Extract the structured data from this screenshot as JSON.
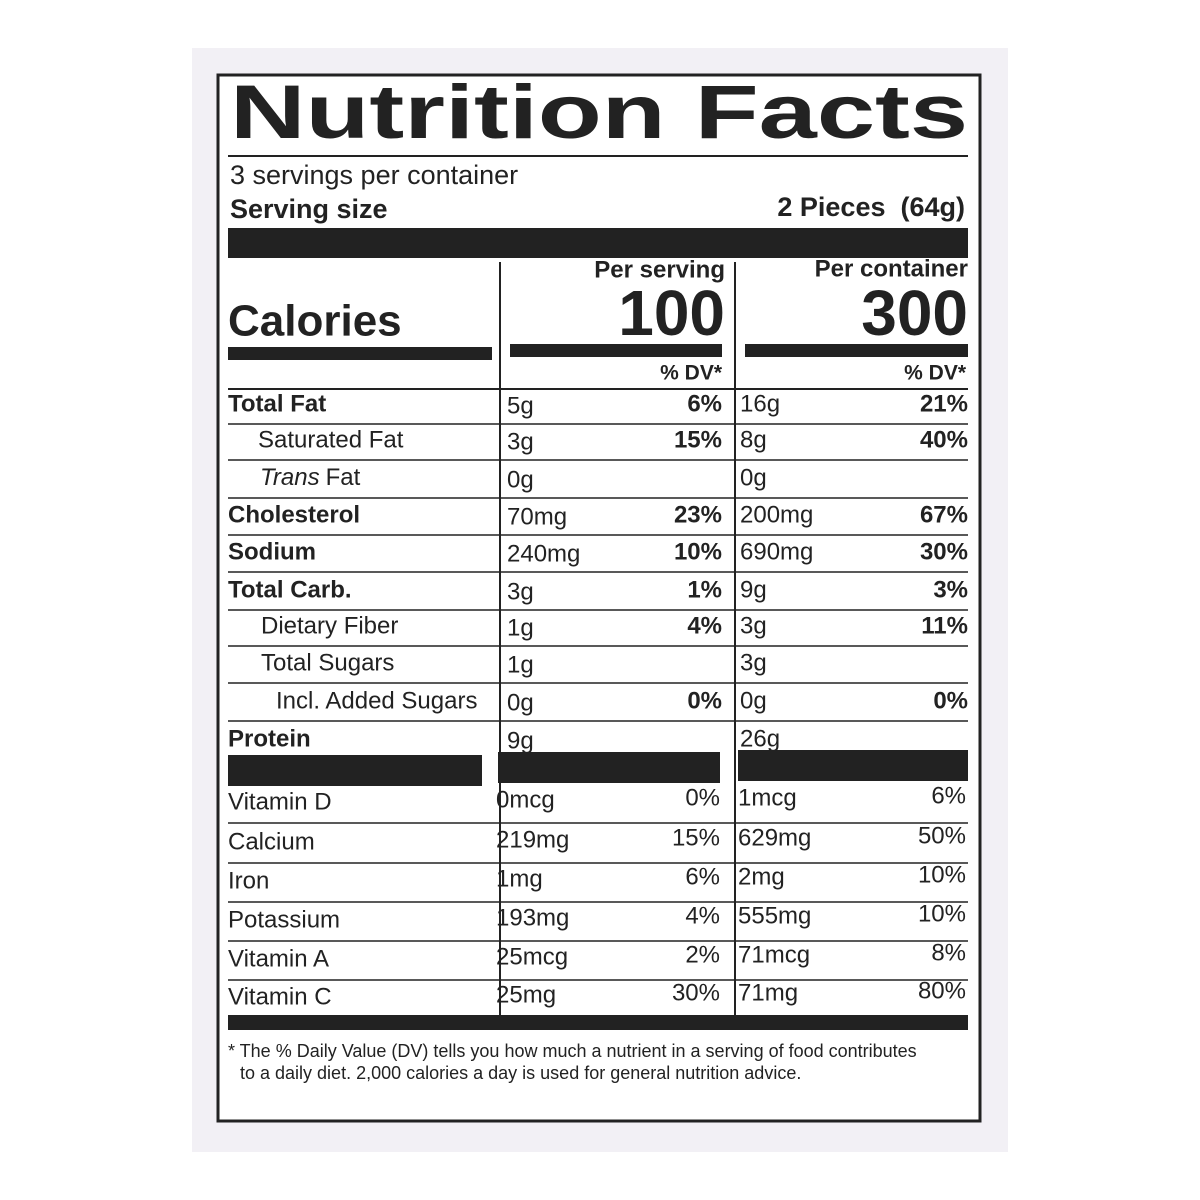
{
  "title": "Nutrition Facts",
  "servings": "3 servings per container",
  "serving_size": {
    "label": "Serving size",
    "value": "2 Pieces  (64g)"
  },
  "columns": [
    "Per serving",
    "Per container"
  ],
  "calories": {
    "label": "Calories",
    "values": [
      "100",
      "300"
    ]
  },
  "dv_header": "% DV*",
  "nutrients": [
    {
      "name": "Total Fat",
      "serving": "5g",
      "serving_dv": "6%",
      "container": "16g",
      "container_dv": "21%"
    },
    {
      "name": "Saturated Fat",
      "serving": "3g",
      "serving_dv": "15%",
      "container": "8g",
      "container_dv": "40%"
    },
    {
      "name_italic": "Trans",
      "name": "Fat",
      "serving": "0g",
      "serving_dv": null,
      "container": "0g",
      "container_dv": null
    },
    {
      "name": "Cholesterol",
      "serving": "70mg",
      "serving_dv": "23%",
      "container": "200mg",
      "container_dv": "67%"
    },
    {
      "name": "Sodium",
      "serving": "240mg",
      "serving_dv": "10%",
      "container": "690mg",
      "container_dv": "30%"
    },
    {
      "name": "Total Carb.",
      "serving": "3g",
      "serving_dv": "1%",
      "container": "9g",
      "container_dv": "3%"
    },
    {
      "name": "Dietary Fiber",
      "serving": "1g",
      "serving_dv": "4%",
      "container": "3g",
      "container_dv": "11%"
    },
    {
      "name": "Total Sugars",
      "serving": "1g",
      "serving_dv": null,
      "container": "3g",
      "container_dv": null
    },
    {
      "name": "Incl. Added Sugars",
      "serving": "0g",
      "serving_dv": "0%",
      "container": "0g",
      "container_dv": "0%"
    },
    {
      "name": "Protein",
      "serving": "9g",
      "serving_dv": null,
      "container": "26g",
      "container_dv": null
    }
  ],
  "vitamins": [
    {
      "name": "Vitamin D",
      "serving": "0mcg",
      "serving_dv": "0%",
      "container": "1mcg",
      "container_dv": "6%"
    },
    {
      "name": "Calcium",
      "serving": "219mg",
      "serving_dv": "15%",
      "container": "629mg",
      "container_dv": "50%"
    },
    {
      "name": "Iron",
      "serving": "1mg",
      "serving_dv": "6%",
      "container": "2mg",
      "container_dv": "10%"
    },
    {
      "name": "Potassium",
      "serving": "193mg",
      "serving_dv": "4%",
      "container": "555mg",
      "container_dv": "10%"
    },
    {
      "name": "Vitamin A",
      "serving": "25mcg",
      "serving_dv": "2%",
      "container": "71mcg",
      "container_dv": "8%"
    },
    {
      "name": "Vitamin C",
      "serving": "25mg",
      "serving_dv": "30%",
      "container": "71mg",
      "container_dv": "80%"
    }
  ],
  "footnote": "* The % Daily Value (DV) tells you how much a nutrient in a serving of food contributes to a daily diet. 2,000 calories a day is used for general nutrition advice."
}
